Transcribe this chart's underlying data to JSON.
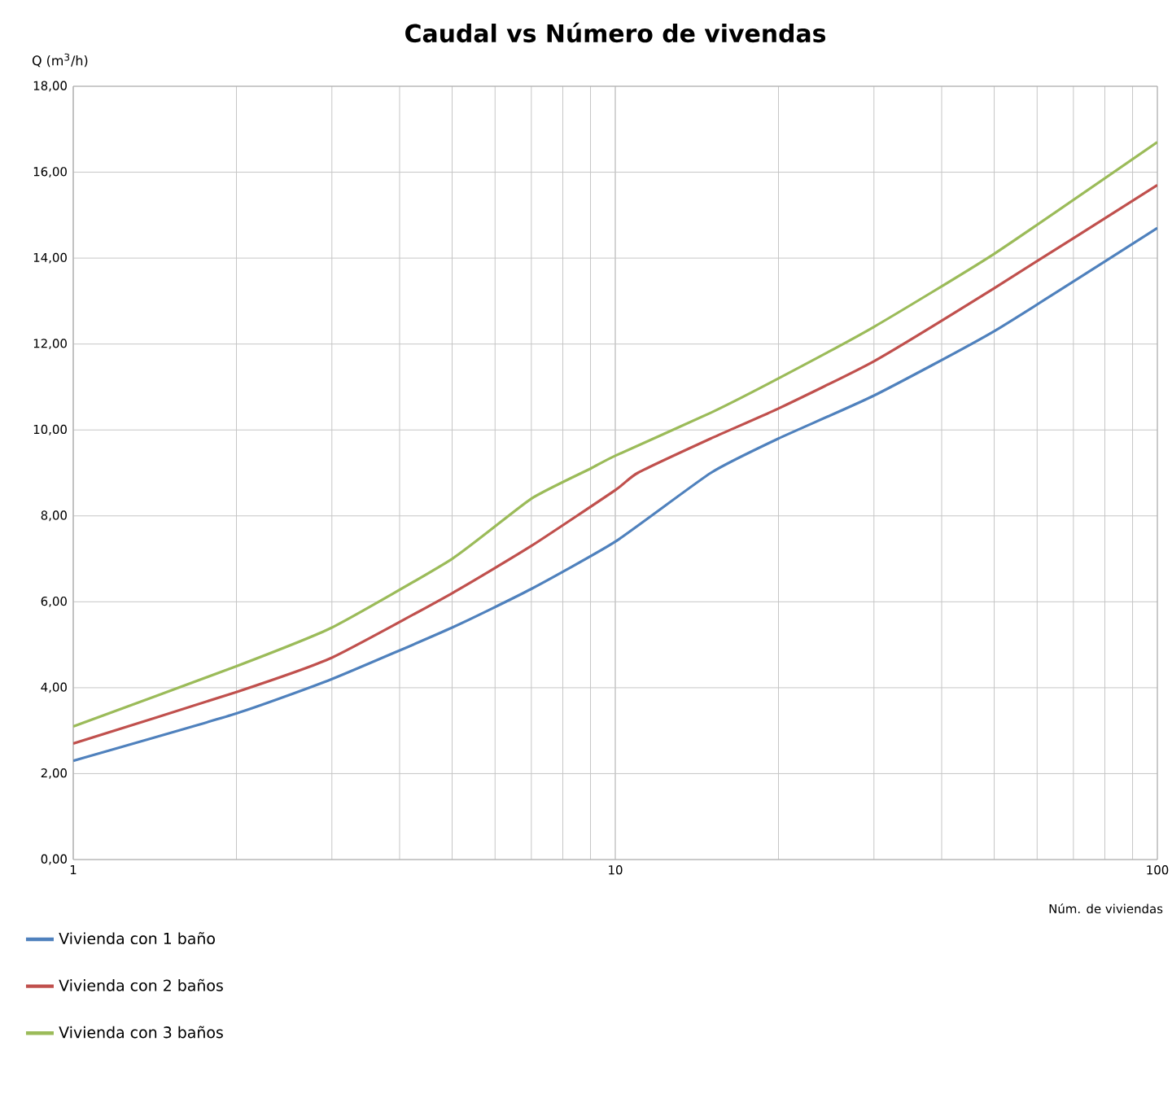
{
  "chart_data": {
    "type": "line",
    "title": "Caudal vs Número de vivendas",
    "xlabel": "Núm. de viviendas",
    "ylabel": "Q  (m$^{3}$/h)",
    "log": "x",
    "grid": true,
    "legend": "bottom",
    "xlim": [
      1,
      100
    ],
    "xticks": [
      1,
      10,
      100
    ],
    "ylim": [
      0,
      18
    ],
    "yticks": [
      {
        "value": 0,
        "label": "0,00"
      },
      {
        "value": 2,
        "label": "2,00"
      },
      {
        "value": 4,
        "label": "4,00"
      },
      {
        "value": 6,
        "label": "6,00"
      },
      {
        "value": 8,
        "label": "8,00"
      },
      {
        "value": 10,
        "label": "10,00"
      },
      {
        "value": 12,
        "label": "12,00"
      },
      {
        "value": 14,
        "label": "14,00"
      },
      {
        "value": 16,
        "label": "16,00"
      },
      {
        "value": 18,
        "label": "18,00"
      }
    ],
    "series": [
      {
        "name": "Vivienda con 1 baño",
        "color": "#4f81bd",
        "x": [
          1,
          2,
          3,
          5,
          7,
          10,
          15,
          20,
          30,
          50,
          100
        ],
        "values": [
          2.3,
          3.4,
          4.2,
          5.4,
          6.3,
          7.4,
          9.0,
          9.8,
          10.8,
          12.3,
          14.7
        ]
      },
      {
        "name": "Vivienda con 2 baños",
        "color": "#c0504d",
        "x": [
          1,
          2,
          3,
          5,
          7,
          10,
          11,
          15,
          20,
          30,
          50,
          100
        ],
        "values": [
          2.7,
          3.9,
          4.7,
          6.2,
          7.3,
          8.6,
          9.0,
          9.8,
          10.5,
          11.6,
          13.3,
          15.7
        ]
      },
      {
        "name": "Vivienda con 3 baños",
        "color": "#9bbb59",
        "x": [
          1,
          2,
          3,
          5,
          7,
          9,
          10,
          15,
          20,
          30,
          50,
          100
        ],
        "values": [
          3.1,
          4.5,
          5.4,
          7.0,
          8.4,
          9.1,
          9.4,
          10.4,
          11.2,
          12.4,
          14.1,
          16.7
        ]
      }
    ]
  }
}
